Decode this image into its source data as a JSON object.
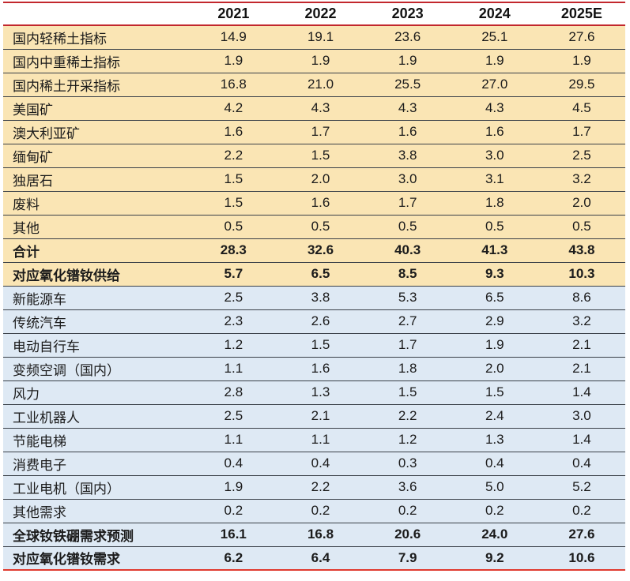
{
  "table": {
    "columns": [
      "2021",
      "2022",
      "2023",
      "2024",
      "2025E"
    ],
    "rows": [
      {
        "label": "国内轻稀土指标",
        "section": "supply",
        "bold": false,
        "values": [
          "14.9",
          "19.1",
          "23.6",
          "25.1",
          "27.6"
        ]
      },
      {
        "label": "国内中重稀土指标",
        "section": "supply",
        "bold": false,
        "values": [
          "1.9",
          "1.9",
          "1.9",
          "1.9",
          "1.9"
        ]
      },
      {
        "label": "国内稀土开采指标",
        "section": "supply",
        "bold": false,
        "values": [
          "16.8",
          "21.0",
          "25.5",
          "27.0",
          "29.5"
        ]
      },
      {
        "label": "美国矿",
        "section": "supply",
        "bold": false,
        "values": [
          "4.2",
          "4.3",
          "4.3",
          "4.3",
          "4.5"
        ]
      },
      {
        "label": "澳大利亚矿",
        "section": "supply",
        "bold": false,
        "values": [
          "1.6",
          "1.7",
          "1.6",
          "1.6",
          "1.7"
        ]
      },
      {
        "label": "缅甸矿",
        "section": "supply",
        "bold": false,
        "values": [
          "2.2",
          "1.5",
          "3.8",
          "3.0",
          "2.5"
        ]
      },
      {
        "label": "独居石",
        "section": "supply",
        "bold": false,
        "values": [
          "1.5",
          "2.0",
          "3.0",
          "3.1",
          "3.2"
        ]
      },
      {
        "label": "废料",
        "section": "supply",
        "bold": false,
        "values": [
          "1.5",
          "1.6",
          "1.7",
          "1.8",
          "2.0"
        ]
      },
      {
        "label": "其他",
        "section": "supply",
        "bold": false,
        "values": [
          "0.5",
          "0.5",
          "0.5",
          "0.5",
          "0.5"
        ]
      },
      {
        "label": "合计",
        "section": "supply",
        "bold": true,
        "values": [
          "28.3",
          "32.6",
          "40.3",
          "41.3",
          "43.8"
        ]
      },
      {
        "label": "对应氧化镨钕供给",
        "section": "supply",
        "bold": true,
        "values": [
          "5.7",
          "6.5",
          "8.5",
          "9.3",
          "10.3"
        ]
      },
      {
        "label": "新能源车",
        "section": "demand",
        "bold": false,
        "values": [
          "2.5",
          "3.8",
          "5.3",
          "6.5",
          "8.6"
        ]
      },
      {
        "label": "传统汽车",
        "section": "demand",
        "bold": false,
        "values": [
          "2.3",
          "2.6",
          "2.7",
          "2.9",
          "3.2"
        ]
      },
      {
        "label": "电动自行车",
        "section": "demand",
        "bold": false,
        "values": [
          "1.2",
          "1.5",
          "1.7",
          "1.9",
          "2.1"
        ]
      },
      {
        "label": "变频空调（国内）",
        "section": "demand",
        "bold": false,
        "values": [
          "1.1",
          "1.6",
          "1.8",
          "2.0",
          "2.1"
        ]
      },
      {
        "label": "风力",
        "section": "demand",
        "bold": false,
        "values": [
          "2.8",
          "1.3",
          "1.5",
          "1.5",
          "1.4"
        ]
      },
      {
        "label": "工业机器人",
        "section": "demand",
        "bold": false,
        "values": [
          "2.5",
          "2.1",
          "2.2",
          "2.4",
          "3.0"
        ]
      },
      {
        "label": "节能电梯",
        "section": "demand",
        "bold": false,
        "values": [
          "1.1",
          "1.1",
          "1.2",
          "1.3",
          "1.4"
        ]
      },
      {
        "label": "消费电子",
        "section": "demand",
        "bold": false,
        "values": [
          "0.4",
          "0.4",
          "0.3",
          "0.4",
          "0.4"
        ]
      },
      {
        "label": "工业电机（国内）",
        "section": "demand",
        "bold": false,
        "values": [
          "1.9",
          "2.2",
          "3.6",
          "5.0",
          "5.2"
        ]
      },
      {
        "label": "其他需求",
        "section": "demand",
        "bold": false,
        "values": [
          "0.2",
          "0.2",
          "0.2",
          "0.2",
          "0.2"
        ]
      },
      {
        "label": "全球钕铁硼需求预测",
        "section": "demand",
        "bold": true,
        "values": [
          "16.1",
          "16.8",
          "20.6",
          "24.0",
          "27.6"
        ]
      },
      {
        "label": "对应氧化镨钕需求",
        "section": "demand",
        "bold": true,
        "values": [
          "6.2",
          "6.4",
          "7.9",
          "9.2",
          "10.6"
        ]
      }
    ]
  },
  "colors": {
    "supply_row_bg": "#FAE5B4",
    "demand_row_bg": "#DEE9F4",
    "accent_red_line": "#C2272D",
    "row_separator": "#3A4048",
    "text": "#1B1B1B"
  }
}
